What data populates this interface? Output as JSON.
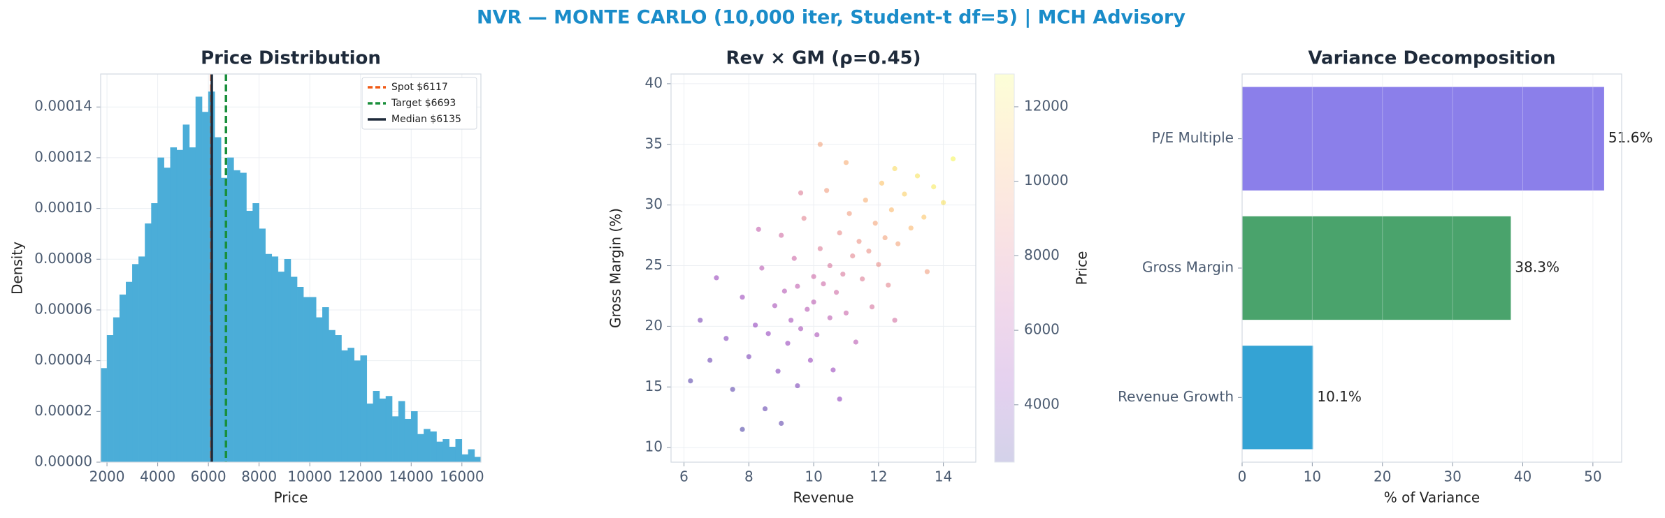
{
  "title": "NVR — MONTE CARLO (10,000 iter, Student-t df=5) | MCH Advisory",
  "chart_data": [
    {
      "type": "histogram",
      "title": "Price Distribution",
      "xlabel": "Price",
      "ylabel": "Density",
      "color": "#4badd8",
      "grid": true,
      "bins": [
        1750,
        2000,
        2250,
        2500,
        2750,
        3000,
        3250,
        3500,
        3750,
        4000,
        4250,
        4500,
        4750,
        5000,
        5250,
        5500,
        5750,
        6000,
        6250,
        6500,
        6750,
        7000,
        7250,
        7500,
        7750,
        8000,
        8250,
        8500,
        8750,
        9000,
        9250,
        9500,
        9750,
        10000,
        10250,
        10500,
        10750,
        11000,
        11250,
        11500,
        11750,
        12000,
        12250,
        12500,
        12750,
        13000,
        13250,
        13500,
        13750,
        14000,
        14250,
        14500,
        14750,
        15000,
        15250,
        15500,
        15750,
        16000,
        16250,
        16500,
        16750
      ],
      "values": [
        3.7e-05,
        5e-05,
        5.7e-05,
        6.6e-05,
        7.1e-05,
        7.8e-05,
        8.1e-05,
        9.4e-05,
        0.000102,
        0.00012,
        0.000116,
        0.000124,
        0.000123,
        0.000133,
        0.000124,
        0.000144,
        0.000138,
        0.000146,
        0.000128,
        0.000112,
        0.00012,
        0.000115,
        0.000114,
        9.9e-05,
        0.000102,
        9.2e-05,
        8.2e-05,
        8.1e-05,
        7.5e-05,
        8e-05,
        7.3e-05,
        6.9e-05,
        6.5e-05,
        6.5e-05,
        5.7e-05,
        6.1e-05,
        5.2e-05,
        5e-05,
        4.4e-05,
        4.5e-05,
        4e-05,
        4.2e-05,
        2.3e-05,
        2.8e-05,
        2.5e-05,
        2.6e-05,
        1.8e-05,
        2.4e-05,
        1.7e-05,
        2e-05,
        1.1e-05,
        1.3e-05,
        1.2e-05,
        8e-06,
        9e-06,
        6e-06,
        9e-06,
        3e-06,
        5e-06,
        2e-06
      ],
      "xlim": [
        1750,
        16750
      ],
      "xticks": [
        2000,
        4000,
        6000,
        8000,
        10000,
        12000,
        14000,
        16000
      ],
      "ylim": [
        0,
        0.000153
      ],
      "yticks": [
        {
          "value": 0,
          "label": "0.00000"
        },
        {
          "value": 2e-05,
          "label": "0.00002"
        },
        {
          "value": 4e-05,
          "label": "0.00004"
        },
        {
          "value": 6e-05,
          "label": "0.00006"
        },
        {
          "value": 8e-05,
          "label": "0.00008"
        },
        {
          "value": 0.0001,
          "label": "0.00010"
        },
        {
          "value": 0.00012,
          "label": "0.00012"
        },
        {
          "value": 0.00014,
          "label": "0.00014"
        }
      ],
      "vlines": [
        {
          "label": "Spot $6117",
          "value": 6117,
          "color": "#f05a16",
          "style": "dashed"
        },
        {
          "label": "Target $6693",
          "value": 6693,
          "color": "#1a8f3c",
          "style": "dashed"
        },
        {
          "label": "Median $6135",
          "value": 6135,
          "color": "#1e2a3a",
          "style": "solid"
        }
      ],
      "legend": "upper right"
    },
    {
      "type": "scatter",
      "title": "Rev × GM (ρ=0.45)",
      "xlabel": "Revenue",
      "ylabel": "Gross Margin (%)",
      "grid": true,
      "colormap": [
        "#0d0887",
        "#6a00a8",
        "#b12a90",
        "#e16462",
        "#fca636",
        "#f0f921"
      ],
      "x": [
        6.2,
        6.8,
        7.3,
        7.5,
        7.8,
        8.0,
        8.2,
        8.4,
        8.5,
        8.6,
        8.8,
        8.9,
        9.0,
        9.1,
        9.2,
        9.3,
        9.4,
        9.5,
        9.5,
        9.6,
        9.7,
        9.8,
        9.9,
        10.0,
        10.0,
        10.1,
        10.2,
        10.3,
        10.4,
        10.5,
        10.5,
        10.6,
        10.7,
        10.8,
        10.9,
        11.0,
        11.1,
        11.2,
        11.3,
        11.4,
        11.5,
        11.6,
        11.7,
        11.8,
        11.9,
        12.0,
        12.1,
        12.2,
        12.3,
        12.4,
        12.5,
        12.6,
        12.8,
        13.0,
        13.2,
        13.4,
        13.7,
        14.0,
        14.3,
        9.0,
        7.0,
        8.3,
        10.2,
        11.0,
        12.5,
        13.5,
        6.5,
        7.8,
        10.8,
        9.6
      ],
      "y": [
        15.5,
        17.2,
        19.0,
        14.8,
        22.4,
        17.5,
        20.1,
        24.8,
        13.2,
        19.4,
        21.7,
        16.3,
        27.5,
        22.9,
        18.6,
        20.5,
        25.6,
        15.1,
        23.3,
        19.8,
        28.9,
        21.4,
        17.2,
        24.1,
        22.0,
        19.3,
        26.4,
        23.5,
        31.2,
        20.7,
        25.0,
        16.4,
        22.8,
        27.7,
        24.3,
        21.1,
        29.3,
        25.8,
        18.7,
        27.0,
        23.9,
        30.4,
        26.2,
        21.6,
        28.5,
        25.1,
        31.8,
        27.3,
        23.4,
        29.6,
        33.0,
        26.8,
        30.9,
        28.1,
        32.4,
        29.0,
        31.5,
        30.2,
        33.8,
        12.0,
        24.0,
        28.0,
        35.0,
        33.5,
        20.5,
        24.5,
        20.5,
        11.5,
        14.0,
        31.0
      ],
      "c": [
        2900,
        3400,
        4100,
        3000,
        5000,
        3900,
        4600,
        6100,
        3200,
        4700,
        5400,
        4100,
        7200,
        5900,
        4800,
        5300,
        7000,
        3900,
        6400,
        5400,
        8300,
        6000,
        4800,
        7000,
        6200,
        5500,
        7900,
        7000,
        9400,
        6200,
        7600,
        4900,
        7100,
        8700,
        7700,
        6800,
        9400,
        8400,
        6100,
        9000,
        8000,
        10200,
        8900,
        7500,
        9800,
        8800,
        11000,
        9700,
        8400,
        10600,
        11800,
        9800,
        11400,
        10500,
        12100,
        11100,
        12300,
        12000,
        12700,
        3100,
        4800,
        6500,
        9700,
        10100,
        7300,
        9500,
        3800,
        2600,
        4500,
        8000
      ],
      "xlim": [
        5.6,
        15
      ],
      "xticks": [
        6,
        8,
        10,
        12,
        14
      ],
      "ylim": [
        8.8,
        40.8
      ],
      "yticks": [
        10,
        15,
        20,
        25,
        30,
        35,
        40
      ],
      "colorbar": {
        "label": "Price",
        "lim": [
          2460,
          12880
        ],
        "ticks": [
          4000,
          6000,
          8000,
          10000,
          12000
        ]
      }
    },
    {
      "type": "barh",
      "title": "Variance Decomposition",
      "xlabel": "% of Variance",
      "grid": true,
      "categories": [
        "P/E Multiple",
        "Gross Margin",
        "Revenue Growth"
      ],
      "values": [
        51.6,
        38.3,
        10.1
      ],
      "value_labels": [
        "51.6%",
        "38.3%",
        "10.1%"
      ],
      "colors": [
        "#8b7fea",
        "#4aa36c",
        "#34a3d4"
      ],
      "xlim": [
        0,
        54.1
      ],
      "xticks": [
        0,
        10,
        20,
        30,
        40,
        50
      ]
    }
  ]
}
